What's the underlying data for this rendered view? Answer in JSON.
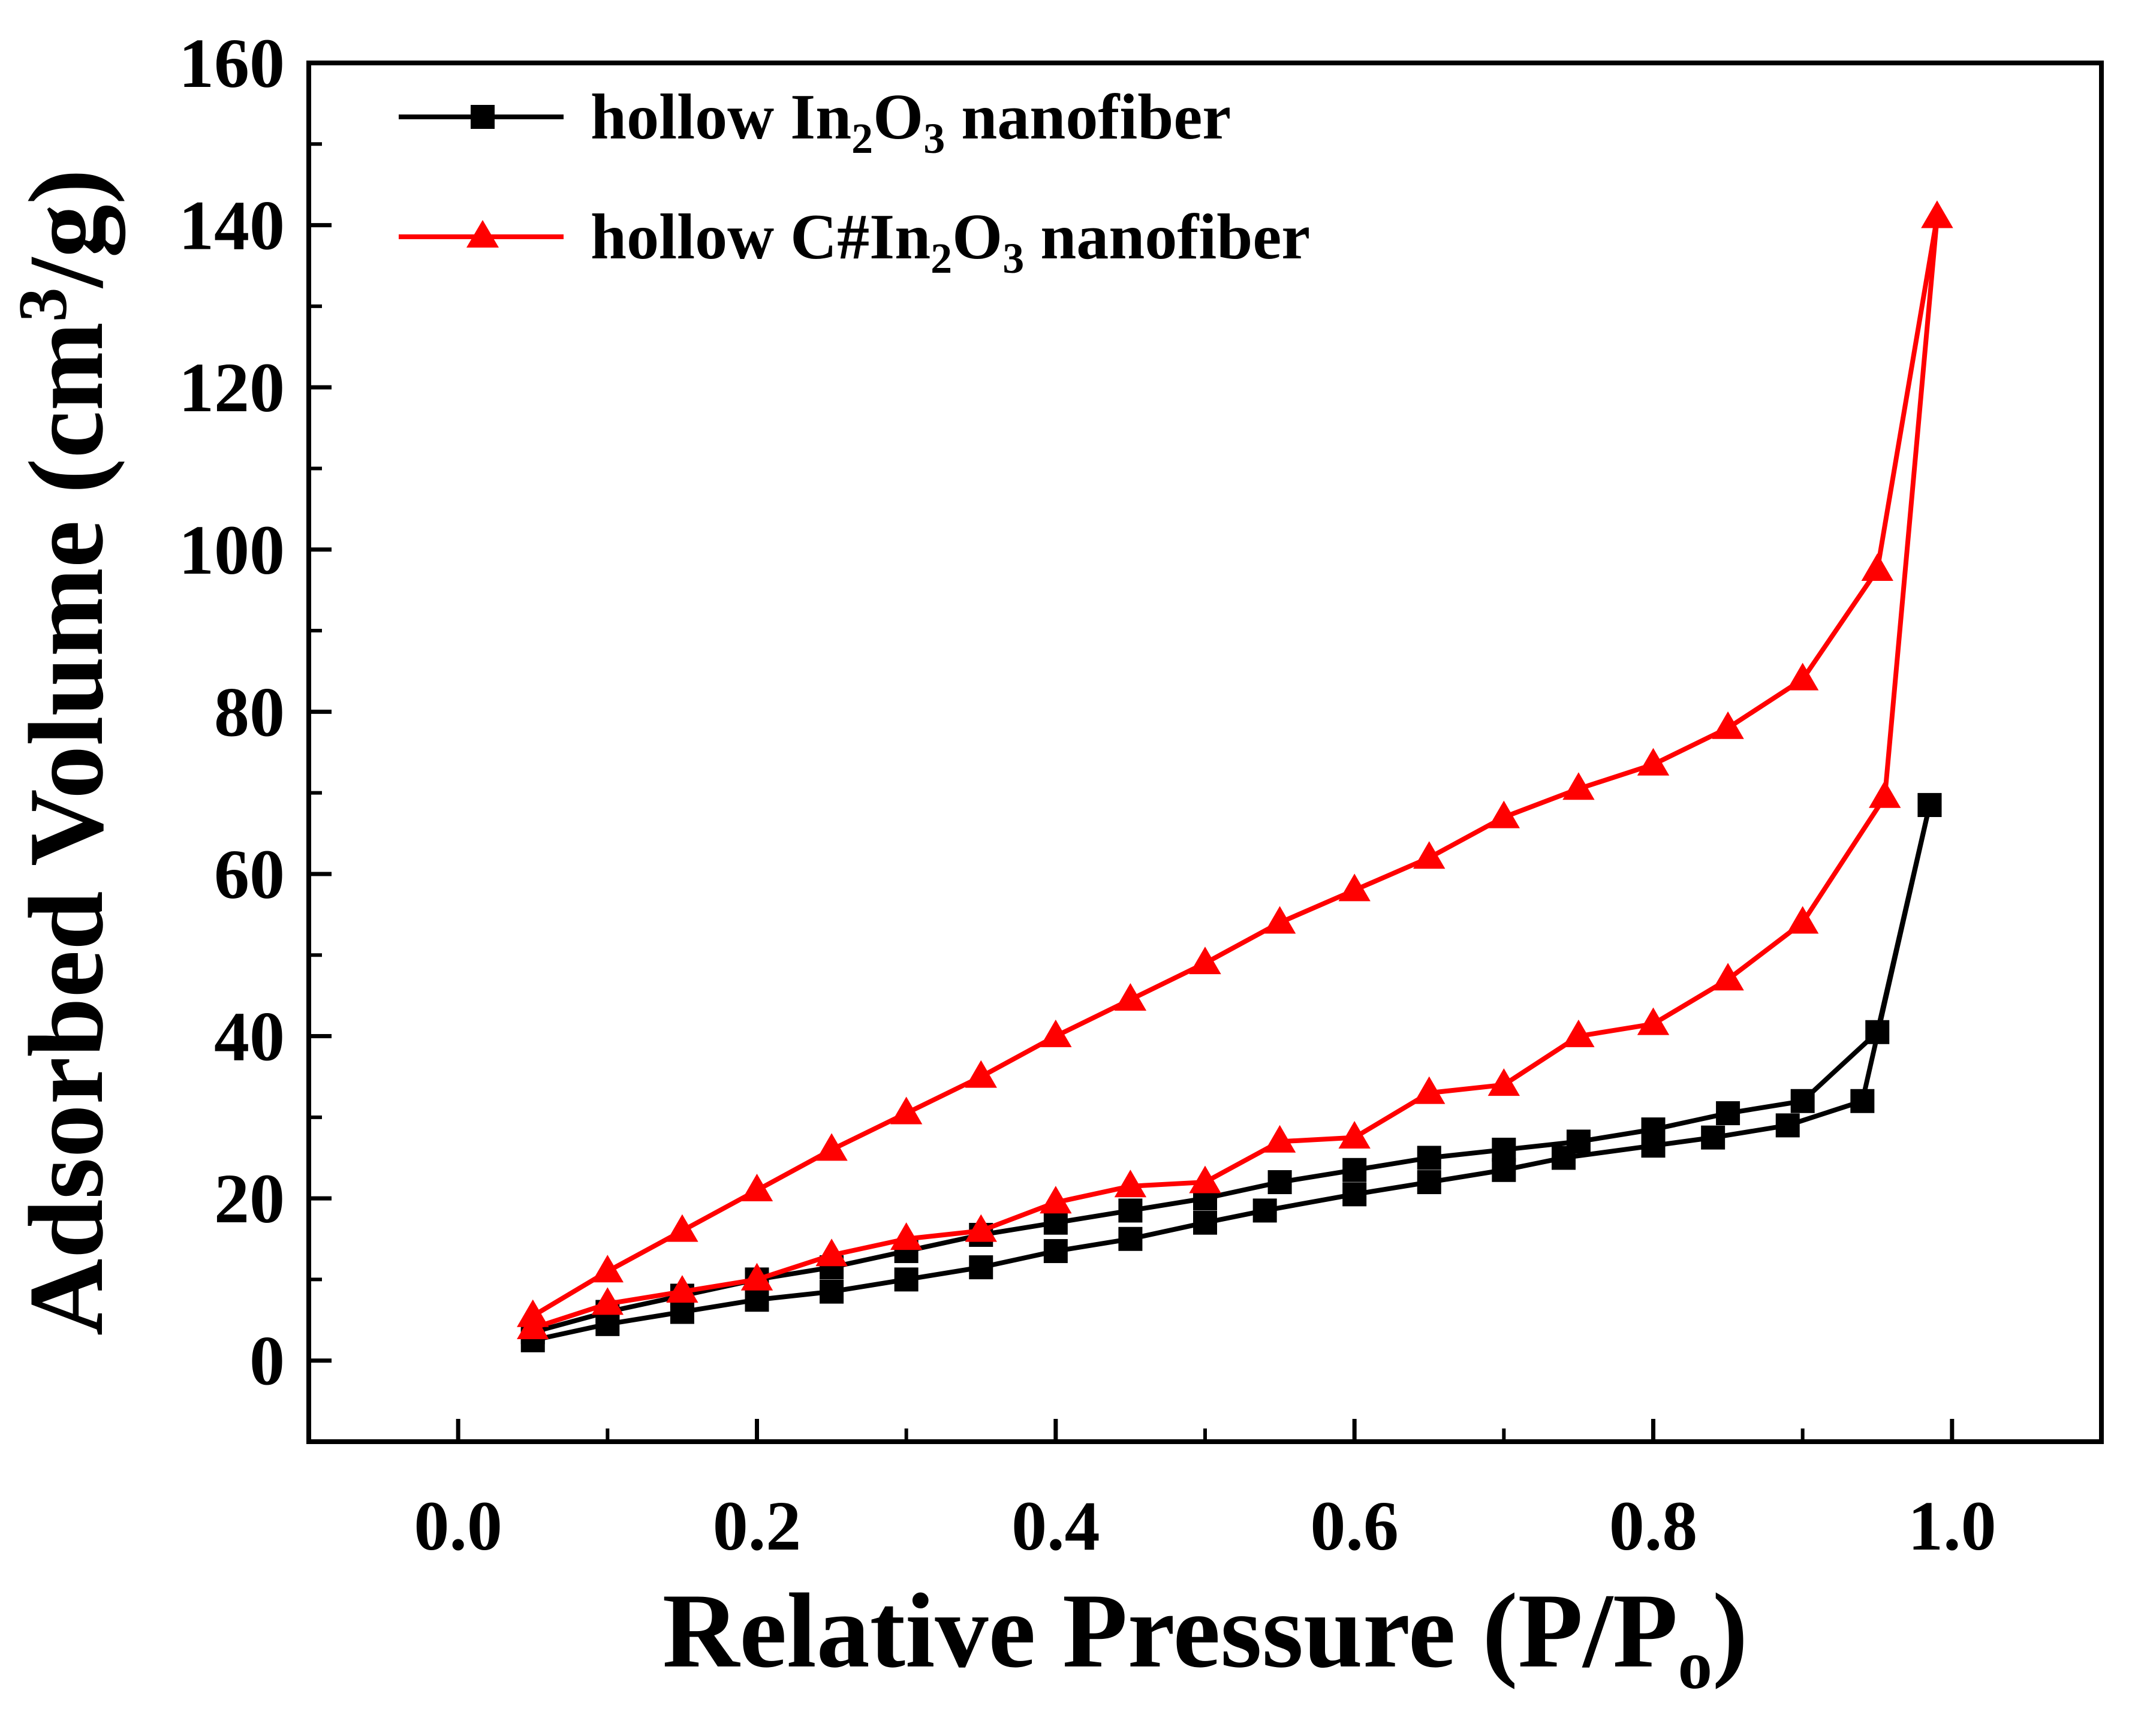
{
  "chart_data": {
    "type": "line",
    "title": "",
    "xlabel": "Relative Pressure (P/P",
    "xlabel_sub": "o",
    "xlabel_close": ")",
    "ylabel": "Adsorbed Volume (cm",
    "ylabel_sup": "3",
    "ylabel_close": "/g)",
    "xlim": [
      -0.1,
      1.1
    ],
    "ylim": [
      -10,
      160
    ],
    "xticks": [
      0.0,
      0.2,
      0.4,
      0.6,
      0.8,
      1.0
    ],
    "xtick_labels": [
      "0.0",
      "0.2",
      "0.4",
      "0.6",
      "0.8",
      "1.0"
    ],
    "yticks": [
      0,
      20,
      40,
      60,
      80,
      100,
      120,
      140,
      160
    ],
    "ytick_labels": [
      "0",
      "20",
      "40",
      "60",
      "80",
      "100",
      "120",
      "140",
      "160"
    ],
    "grid": false,
    "legend_position": "top-left",
    "series": [
      {
        "name": "hollow In2O3 nanofiber",
        "legend_parts": [
          "hollow In",
          "2",
          "O",
          "3",
          " nanofiber"
        ],
        "color": "#000000",
        "marker": "square",
        "adsorption": {
          "x": [
            0.05,
            0.1,
            0.15,
            0.2,
            0.25,
            0.3,
            0.35,
            0.4,
            0.45,
            0.5,
            0.54,
            0.6,
            0.65,
            0.7,
            0.74,
            0.8,
            0.84,
            0.89,
            0.94,
            0.985
          ],
          "y": [
            2.5,
            4.5,
            6.0,
            7.5,
            8.5,
            10.0,
            11.5,
            13.5,
            15.0,
            17.0,
            18.5,
            20.5,
            22.0,
            23.5,
            25.0,
            26.5,
            27.5,
            29.0,
            32.0,
            68.5
          ]
        },
        "desorption": {
          "x": [
            0.985,
            0.95,
            0.9,
            0.85,
            0.8,
            0.75,
            0.7,
            0.65,
            0.6,
            0.55,
            0.5,
            0.45,
            0.4,
            0.35,
            0.3,
            0.25,
            0.2,
            0.15,
            0.1,
            0.05
          ],
          "y": [
            68.5,
            40.5,
            32.0,
            30.5,
            28.5,
            27.0,
            26.0,
            25.0,
            23.5,
            22.0,
            20.0,
            18.5,
            17.0,
            15.5,
            13.5,
            11.5,
            10.0,
            8.0,
            6.0,
            3.5
          ]
        }
      },
      {
        "name": "hollow C#In2O3 nanofiber",
        "legend_parts": [
          "hollow C#In",
          "2",
          "O",
          "3",
          " nanofiber"
        ],
        "color": "#ff0000",
        "marker": "triangle",
        "adsorption": {
          "x": [
            0.05,
            0.1,
            0.15,
            0.2,
            0.25,
            0.3,
            0.35,
            0.4,
            0.45,
            0.5,
            0.55,
            0.6,
            0.65,
            0.7,
            0.75,
            0.8,
            0.85,
            0.9,
            0.955,
            0.99
          ],
          "y": [
            4.0,
            7.0,
            8.5,
            10.0,
            13.0,
            15.0,
            16.0,
            19.5,
            21.5,
            22.0,
            27.0,
            27.5,
            33.0,
            34.0,
            40.0,
            41.5,
            47.0,
            54.0,
            69.5,
            141.0
          ]
        },
        "desorption": {
          "x": [
            0.99,
            0.95,
            0.9,
            0.85,
            0.8,
            0.75,
            0.7,
            0.65,
            0.6,
            0.55,
            0.5,
            0.45,
            0.4,
            0.35,
            0.3,
            0.25,
            0.2,
            0.15,
            0.1,
            0.05
          ],
          "y": [
            141.0,
            97.5,
            84.0,
            78.0,
            73.5,
            70.5,
            67.0,
            62.0,
            58.0,
            54.0,
            49.0,
            44.5,
            40.0,
            35.0,
            30.5,
            26.0,
            21.0,
            16.0,
            11.0,
            5.5
          ]
        }
      }
    ]
  }
}
